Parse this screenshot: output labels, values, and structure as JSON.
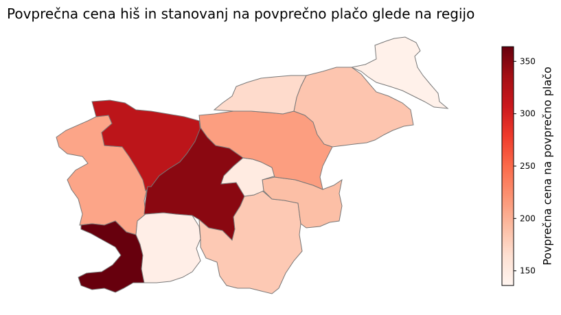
{
  "title": "Povprečna cena hiš in stanovanj na povprečno plačo glede na regijo",
  "colorbar": {
    "label": "Povprečna cena na povprečno plačo",
    "min": 136,
    "max": 364,
    "ticks": [
      "150",
      "200",
      "250",
      "300",
      "350"
    ],
    "colormap": "Reds",
    "colors": [
      "#fff5f0",
      "#fee0d2",
      "#fcbba1",
      "#fc9272",
      "#fb6a4a",
      "#ef3b2c",
      "#cb181d",
      "#a50f15",
      "#67000d"
    ]
  },
  "chart_data": {
    "type": "choropleth",
    "value_range": [
      136,
      364
    ],
    "regions": [
      {
        "value": 208
      },
      {
        "value": 318
      },
      {
        "value": 348
      },
      {
        "value": 364
      },
      {
        "value": 145
      },
      {
        "value": 182
      },
      {
        "value": 190
      },
      {
        "value": 150
      },
      {
        "value": 213
      },
      {
        "value": 185
      },
      {
        "value": 142
      },
      {
        "value": 168
      }
    ]
  }
}
